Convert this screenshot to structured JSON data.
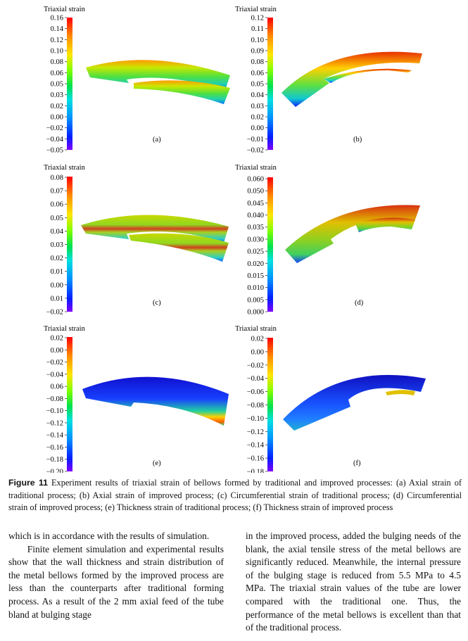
{
  "figure": {
    "panels": [
      {
        "id": "a",
        "title": "Triaxial strain",
        "ticks": [
          "0.16",
          "0.14",
          "0.12",
          "0.10",
          "0.08",
          "0.06",
          "0.05",
          "0.03",
          "0.02",
          "0.00",
          "−0.02",
          "−0.04",
          "−0.05"
        ],
        "label": "(a)"
      },
      {
        "id": "b",
        "title": "Triaxial strain",
        "ticks": [
          "0.12",
          "0.11",
          "0.10",
          "0.09",
          "0.08",
          "0.06",
          "0.05",
          "0.04",
          "0.03",
          "0.02",
          "0.00",
          "−0.01",
          "−0.02"
        ],
        "label": "(b)"
      },
      {
        "id": "c",
        "title": "Triaxial strain",
        "ticks": [
          "0.08",
          "0.07",
          "0.06",
          "0.05",
          "0.04",
          "0.03",
          "0.02",
          "0.01",
          "0.00",
          "0.01",
          "−0.02"
        ],
        "label": "(c)"
      },
      {
        "id": "d",
        "title": "Triaxial strain",
        "ticks": [
          "0.060",
          "0.050",
          "0.045",
          "0.040",
          "0.035",
          "0.030",
          "0.025",
          "0.020",
          "0.015",
          "0.010",
          "0.005",
          "0.000"
        ],
        "label": "(d)"
      },
      {
        "id": "e",
        "title": "Triaxial strain",
        "ticks": [
          "0.02",
          "0.00",
          "−0.02",
          "−0.04",
          "0.06",
          "−0.08",
          "−0.10",
          "−0.12",
          "−0.14",
          "−0.16",
          "−0.18",
          "−0.20"
        ],
        "label": "(e)"
      },
      {
        "id": "f",
        "title": "Triaxial strain",
        "ticks": [
          "0.02",
          "0.00",
          "−0.02",
          "−0.04",
          "−0.06",
          "−0.08",
          "−0.10",
          "−0.12",
          "−0.14",
          "−0.16",
          "−0.18"
        ],
        "label": "(f)"
      }
    ]
  },
  "caption": {
    "label": "Figure 11",
    "text": " Experiment results of triaxial strain of bellows formed by traditional and improved processes: (a) Axial strain of traditional process; (b) Axial strain of improved process; (c) Circumferential strain of traditional process; (d) Circumferential strain of improved process; (e) Thickness strain of traditional process; (f) Thickness strain of improved process"
  },
  "body": {
    "left_p1": "which is in accordance with the results of simulation.",
    "left_p2": "Finite element simulation and experimental results show that the wall thickness and strain distribution of the metal bellows formed by the improved process are less than the counterparts after traditional forming process. As a result of the 2 mm axial feed of the tube bland at bulging stage",
    "right_p1": "in the improved process, added the bulging needs of the blank, the axial tensile stress of the metal bellows are significantly reduced. Meanwhile, the internal pressure of the bulging stage is reduced from 5.5 MPa to 4.5 MPa. The triaxial strain values of the tube are lower compared with the traditional one. Thus, the performance of the metal bellows is excellent than that of the traditional process."
  },
  "colors": {
    "colormap": [
      "#ff0000",
      "#ff8c00",
      "#ffe600",
      "#7fff00",
      "#00e050",
      "#00e0e0",
      "#0090ff",
      "#0020ff",
      "#8000ff"
    ]
  }
}
